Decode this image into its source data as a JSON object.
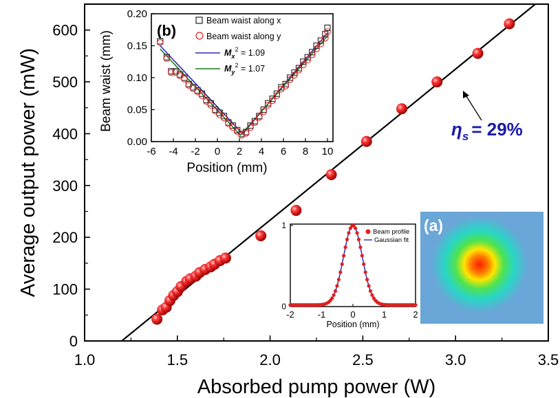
{
  "chart_data": [
    {
      "id": "main",
      "type": "scatter",
      "xlabel": "Absorbed pump power (W)",
      "ylabel": "Average output power (mW)",
      "xlim": [
        1.0,
        3.5
      ],
      "ylim": [
        0,
        650
      ],
      "xticks": [
        "1.0",
        "1.5",
        "2.0",
        "2.5",
        "3.0",
        "3.5"
      ],
      "yticks": [
        "0",
        "100",
        "200",
        "300",
        "400",
        "500",
        "600"
      ],
      "annotation": {
        "symbol": "η",
        "subscript": "s",
        "text": "= 29%"
      },
      "fit_line": {
        "x": [
          1.2,
          3.43
        ],
        "y": [
          0,
          650
        ]
      },
      "series": [
        {
          "marker": "red-sphere",
          "x": [
            1.39,
            1.42,
            1.44,
            1.46,
            1.48,
            1.5,
            1.52,
            1.55,
            1.57,
            1.6,
            1.62,
            1.65,
            1.68,
            1.7,
            1.73,
            1.76,
            1.95,
            2.14,
            2.33,
            2.52,
            2.71,
            2.9,
            3.12,
            3.29
          ],
          "y": [
            42,
            60,
            65,
            78,
            88,
            95,
            105,
            115,
            120,
            125,
            132,
            138,
            143,
            148,
            155,
            160,
            203,
            252,
            321,
            385,
            448,
            500,
            555,
            612
          ]
        }
      ]
    },
    {
      "id": "inset-b",
      "type": "scatter",
      "panel_label": "(b)",
      "xlabel": "Position (mm)",
      "ylabel": "Beam waist (mm)",
      "xlim": [
        -6,
        10.5
      ],
      "ylim": [
        0,
        0.2
      ],
      "xticks": [
        "-6",
        "-4",
        "-2",
        "0",
        "2",
        "4",
        "6",
        "8",
        "10"
      ],
      "yticks": [
        "0.00",
        "0.05",
        "0.10",
        "0.15",
        "0.20"
      ],
      "legend_position": "top-right",
      "series": [
        {
          "name": "Beam waist along x",
          "marker": "square",
          "color": "#222222",
          "x": [
            -5.2,
            -4.6,
            -4.2,
            -3.8,
            -3.4,
            -3.0,
            -2.6,
            -2.2,
            -1.8,
            -1.4,
            -1.0,
            -0.6,
            -0.2,
            0.2,
            0.6,
            1.0,
            1.4,
            1.8,
            2.2,
            2.6,
            3.0,
            3.4,
            3.8,
            4.2,
            4.6,
            5.0,
            5.4,
            5.8,
            6.2,
            6.6,
            7.0,
            7.4,
            7.8,
            8.2,
            8.6,
            9.0,
            9.4,
            9.8,
            10.0
          ],
          "y": [
            0.157,
            0.132,
            0.11,
            0.11,
            0.105,
            0.1,
            0.09,
            0.085,
            0.08,
            0.075,
            0.065,
            0.06,
            0.05,
            0.045,
            0.04,
            0.03,
            0.025,
            0.018,
            0.012,
            0.015,
            0.025,
            0.032,
            0.04,
            0.05,
            0.06,
            0.067,
            0.075,
            0.085,
            0.09,
            0.1,
            0.108,
            0.115,
            0.125,
            0.132,
            0.14,
            0.15,
            0.158,
            0.168,
            0.178
          ]
        },
        {
          "name": "Beam waist along y",
          "marker": "circle",
          "color": "#e02020",
          "x": [
            -5.2,
            -4.6,
            -4.2,
            -3.8,
            -3.4,
            -3.0,
            -2.6,
            -2.2,
            -1.8,
            -1.4,
            -1.0,
            -0.6,
            -0.2,
            0.2,
            0.6,
            1.0,
            1.4,
            1.8,
            2.2,
            2.6,
            3.0,
            3.4,
            3.8,
            4.2,
            4.6,
            5.0,
            5.4,
            5.8,
            6.2,
            6.6,
            7.0,
            7.4,
            7.8,
            8.2,
            8.6,
            9.0,
            9.4,
            9.8,
            10.0
          ],
          "y": [
            0.155,
            0.13,
            0.108,
            0.108,
            0.103,
            0.098,
            0.088,
            0.083,
            0.078,
            0.072,
            0.063,
            0.057,
            0.048,
            0.042,
            0.037,
            0.028,
            0.022,
            0.016,
            0.01,
            0.013,
            0.022,
            0.03,
            0.038,
            0.047,
            0.057,
            0.064,
            0.072,
            0.082,
            0.087,
            0.097,
            0.104,
            0.112,
            0.12,
            0.128,
            0.136,
            0.145,
            0.153,
            0.162,
            0.172
          ]
        },
        {
          "name": "M_x^2 = 1.09",
          "marker": "line",
          "color": "#2a2ab8",
          "x": [
            -5.2,
            2.3,
            10.0
          ],
          "y": [
            0.15,
            0.012,
            0.17
          ]
        },
        {
          "name": "M_y^2 = 1.07",
          "marker": "line",
          "color": "#1a7a1a",
          "x": [
            -5.2,
            2.1,
            10.0
          ],
          "y": [
            0.145,
            0.01,
            0.165
          ]
        }
      ],
      "legend": [
        {
          "label": "Beam waist along x"
        },
        {
          "label": "Beam waist along y"
        },
        {
          "symbol": "M",
          "sub": "x",
          "sup": "2",
          "text": " = 1.09"
        },
        {
          "symbol": "M",
          "sub": "y",
          "sup": "2",
          "text": " = 1.07"
        }
      ]
    },
    {
      "id": "inset-profile",
      "type": "scatter",
      "xlabel": "Position (mm)",
      "xlim": [
        -2,
        2
      ],
      "ylim": [
        0,
        1
      ],
      "xticks": [
        "-2",
        "-1",
        "0",
        "1",
        "2"
      ],
      "yticks": [
        "0",
        "1"
      ],
      "legend_position": "top-right",
      "series": [
        {
          "name": "Beam profile",
          "marker": "circle",
          "color": "#e02020"
        },
        {
          "name": "Gaussian fit",
          "marker": "line",
          "color": "#2a2ab8"
        }
      ],
      "gaussian": {
        "center": 0,
        "sigma": 0.3,
        "baseline": 0.02
      }
    }
  ],
  "image_panel": {
    "label": "(a)",
    "background": "#6aa6d8"
  }
}
